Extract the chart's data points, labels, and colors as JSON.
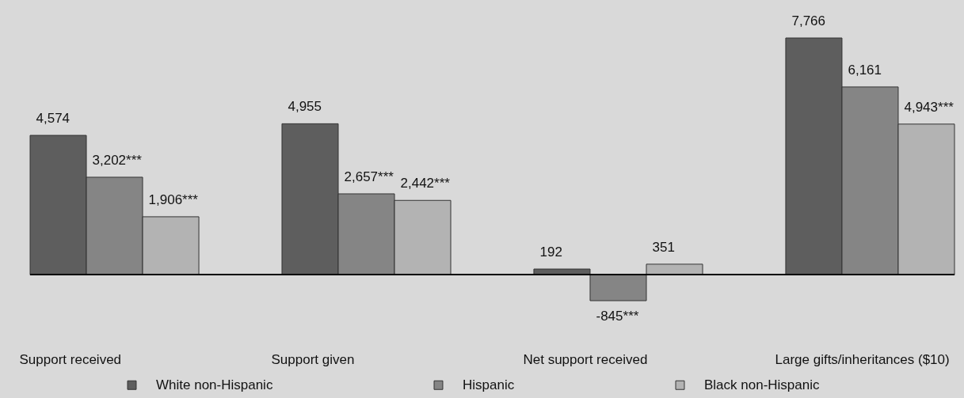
{
  "chart_data": {
    "type": "bar",
    "categories": [
      "Support received",
      "Support given",
      "Net support received",
      "Large gifts/inheritances ($10)"
    ],
    "series": [
      {
        "name": "White non-Hispanic",
        "color": "#5e5e5e",
        "values": [
          4574,
          4955,
          192,
          7766
        ],
        "value_labels": [
          "4,574",
          "4,955",
          "192",
          "7,766"
        ]
      },
      {
        "name": "Hispanic",
        "color": "#858585",
        "values": [
          3202,
          2657,
          -845,
          6161
        ],
        "value_labels": [
          "3,202***",
          "2,657***",
          "-845***",
          "6,161"
        ]
      },
      {
        "name": "Black non-Hispanic",
        "color": "#b3b3b3",
        "values": [
          1906,
          2442,
          351,
          4943
        ],
        "value_labels": [
          "1,906***",
          "2,442***",
          "351",
          "4,943***"
        ]
      }
    ],
    "legend": "bottom"
  }
}
